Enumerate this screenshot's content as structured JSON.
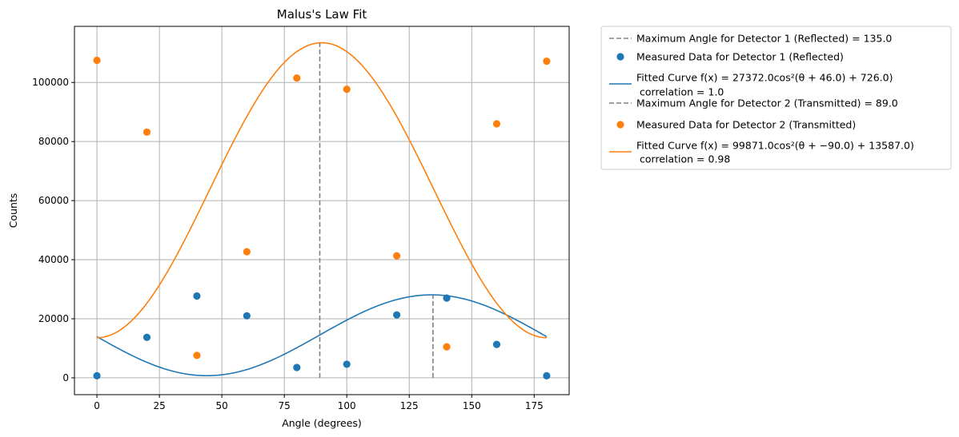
{
  "chart_data": {
    "type": "scatter",
    "title": "Malus's Law Fit",
    "xlabel": "Angle (degrees)",
    "ylabel": "Counts",
    "xlim": [
      -9,
      189
    ],
    "ylim": [
      -5700,
      119000
    ],
    "xticks": [
      0,
      25,
      50,
      75,
      100,
      125,
      150,
      175
    ],
    "yticks": [
      0,
      20000,
      40000,
      60000,
      80000,
      100000
    ],
    "grid": true,
    "legend_position": "outside-right",
    "series": [
      {
        "name": "Measured Data for Detector 1 (Reflected)",
        "kind": "scatter",
        "color": "#1f77b4",
        "x": [
          0,
          20,
          40,
          60,
          80,
          100,
          120,
          140,
          160,
          180
        ],
        "y": [
          700,
          13700,
          27700,
          21000,
          3500,
          4600,
          21300,
          27000,
          11300,
          700
        ]
      },
      {
        "name": "Measured Data for Detector 2 (Transmitted)",
        "kind": "scatter",
        "color": "#ff7f0e",
        "x": [
          0,
          20,
          40,
          60,
          80,
          100,
          120,
          140,
          160,
          180
        ],
        "y": [
          107500,
          83200,
          7600,
          42700,
          101500,
          97700,
          41300,
          10500,
          86000,
          107200
        ]
      }
    ],
    "fits": [
      {
        "legend_main": "Fitted Curve f(x) = 27372.0cos²(θ + 46.0) + 726.0)",
        "legend_sub": "correlation = 1.0",
        "color": "#1f77b4",
        "amplitude": 27372.0,
        "phase": 46.0,
        "offset": 726.0,
        "x_range": [
          0,
          180
        ]
      },
      {
        "legend_main": "Fitted Curve f(x) = 99871.0cos²(θ + −90.0) + 13587.0)",
        "legend_sub": "correlation = 0.98",
        "color": "#ff7f0e",
        "amplitude": 99871.0,
        "phase": -90.0,
        "offset": 13587.0,
        "x_range": [
          0,
          180
        ]
      }
    ],
    "vlines": [
      {
        "label": "Maximum Angle for Detector 1 (Reflected) = 135.0",
        "x": 134.5,
        "ymin": 0,
        "ymax": 28000,
        "color": "#808080"
      },
      {
        "label": "Maximum Angle for Detector 2 (Transmitted) = 89.0",
        "x": 89.2,
        "ymin": 0,
        "ymax": 113400,
        "color": "#808080"
      }
    ],
    "legend_order": [
      "vline:0",
      "series:0",
      "fit:0",
      "vline:1",
      "series:1",
      "fit:1"
    ]
  }
}
